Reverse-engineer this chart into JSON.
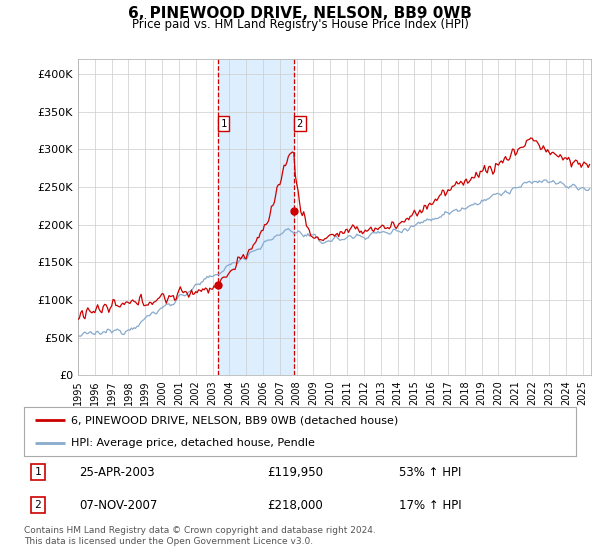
{
  "title": "6, PINEWOOD DRIVE, NELSON, BB9 0WB",
  "subtitle": "Price paid vs. HM Land Registry's House Price Index (HPI)",
  "ylabel_ticks": [
    "£0",
    "£50K",
    "£100K",
    "£150K",
    "£200K",
    "£250K",
    "£300K",
    "£350K",
    "£400K"
  ],
  "ytick_values": [
    0,
    50000,
    100000,
    150000,
    200000,
    250000,
    300000,
    350000,
    400000
  ],
  "ylim": [
    0,
    420000
  ],
  "xlim_start": 1995.0,
  "xlim_end": 2025.5,
  "sale1_x": 2003.32,
  "sale1_y": 119950,
  "sale1_label": "1",
  "sale1_date": "25-APR-2003",
  "sale1_price": "£119,950",
  "sale1_hpi": "53% ↑ HPI",
  "sale2_x": 2007.85,
  "sale2_y": 218000,
  "sale2_label": "2",
  "sale2_date": "07-NOV-2007",
  "sale2_price": "£218,000",
  "sale2_hpi": "17% ↑ HPI",
  "line_color_property": "#cc0000",
  "line_color_hpi": "#88aacc",
  "shade_color": "#ddeeff",
  "marker_color": "#cc0000",
  "vline_color": "#cc0000",
  "legend_property": "6, PINEWOOD DRIVE, NELSON, BB9 0WB (detached house)",
  "legend_hpi": "HPI: Average price, detached house, Pendle",
  "footer": "Contains HM Land Registry data © Crown copyright and database right 2024.\nThis data is licensed under the Open Government Licence v3.0.",
  "background_color": "#ffffff",
  "plot_bg_color": "#ffffff",
  "grid_color": "#cccccc"
}
